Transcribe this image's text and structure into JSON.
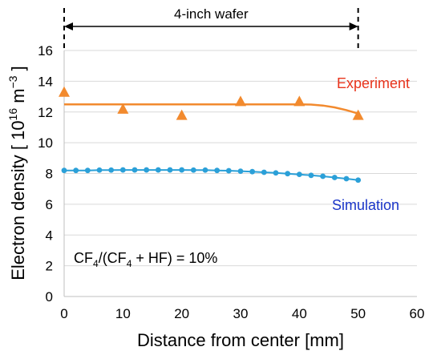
{
  "chart_data": {
    "type": "scatter",
    "xlabel": "Distance from center [mm]",
    "ylabel": {
      "main": "Electron density [ 10",
      "sup1": "16",
      "unit": " m",
      "sup2": "−3",
      "close": " ]"
    },
    "xlim": [
      0,
      60
    ],
    "ylim": [
      0,
      16
    ],
    "x_ticks": [
      0,
      10,
      20,
      30,
      40,
      50,
      60
    ],
    "y_ticks": [
      0,
      2,
      4,
      6,
      8,
      10,
      12,
      14,
      16
    ],
    "grid": "horizontal",
    "wafer_span": {
      "label": "4-inch wafer",
      "x_start": 0,
      "x_end": 50
    },
    "condition": {
      "a": "CF",
      "a_sub": "4",
      "b": "/(CF",
      "b_sub": "4",
      "c": " + HF) = 10%"
    },
    "series": [
      {
        "name": "Experiment",
        "color": "#F28A2E",
        "label_color": "#E8341C",
        "marker": "triangle",
        "points": [
          [
            0,
            13.3
          ],
          [
            10,
            12.2
          ],
          [
            20,
            11.8
          ],
          [
            30,
            12.7
          ],
          [
            40,
            12.7
          ],
          [
            50,
            11.8
          ]
        ],
        "fit_curve": [
          [
            0,
            12.5
          ],
          [
            10,
            12.5
          ],
          [
            20,
            12.5
          ],
          [
            30,
            12.5
          ],
          [
            40,
            12.5
          ],
          [
            42,
            12.48
          ],
          [
            44,
            12.42
          ],
          [
            46,
            12.3
          ],
          [
            48,
            12.12
          ],
          [
            50,
            11.9
          ]
        ]
      },
      {
        "name": "Simulation",
        "color": "#2BA0D8",
        "label_color": "#1A35C8",
        "marker": "circle",
        "points": [
          [
            0,
            8.2
          ],
          [
            2,
            8.2
          ],
          [
            4,
            8.2
          ],
          [
            6,
            8.22
          ],
          [
            8,
            8.22
          ],
          [
            10,
            8.23
          ],
          [
            12,
            8.23
          ],
          [
            14,
            8.23
          ],
          [
            16,
            8.23
          ],
          [
            18,
            8.23
          ],
          [
            20,
            8.23
          ],
          [
            22,
            8.22
          ],
          [
            24,
            8.22
          ],
          [
            26,
            8.2
          ],
          [
            28,
            8.18
          ],
          [
            30,
            8.15
          ],
          [
            32,
            8.12
          ],
          [
            34,
            8.08
          ],
          [
            36,
            8.04
          ],
          [
            38,
            7.99
          ],
          [
            40,
            7.94
          ],
          [
            42,
            7.88
          ],
          [
            44,
            7.82
          ],
          [
            46,
            7.74
          ],
          [
            48,
            7.66
          ],
          [
            50,
            7.57
          ]
        ]
      }
    ]
  }
}
